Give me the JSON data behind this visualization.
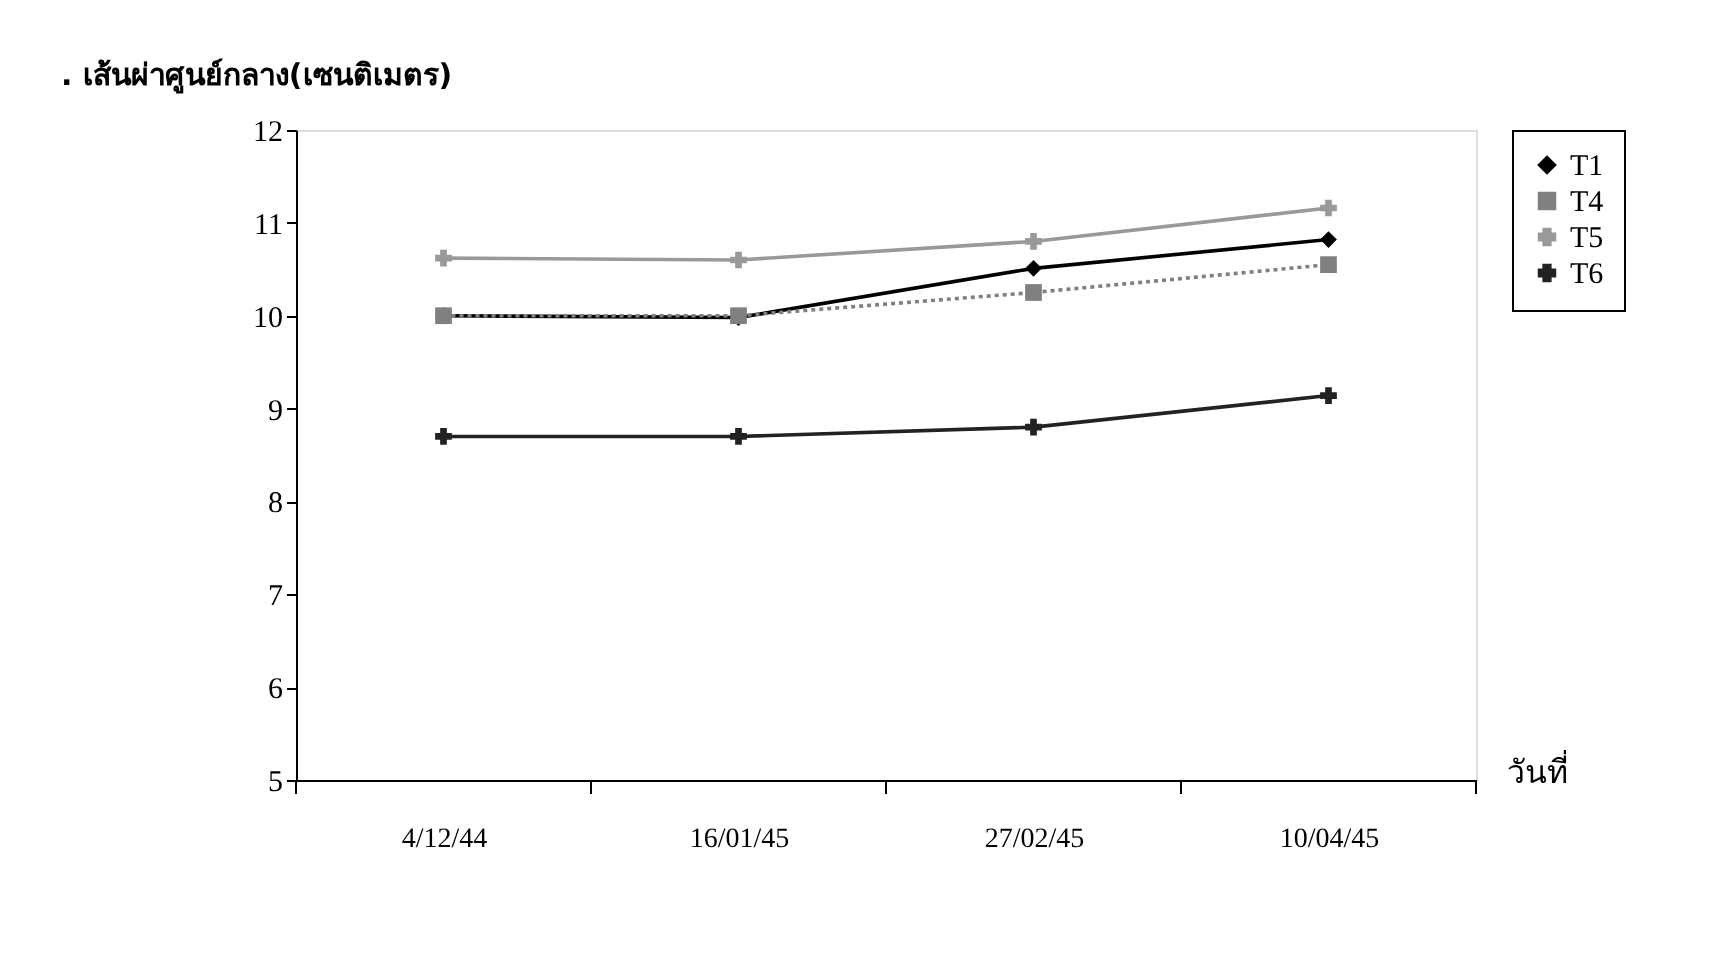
{
  "chart_data": {
    "type": "line",
    "ylabel": ". เส้นผ่าศูนย์กลาง(เซนติเมตร)",
    "xlabel": "วันที่",
    "categories": [
      "4/12/44",
      "16/01/45",
      "27/02/45",
      "10/04/45"
    ],
    "series": [
      {
        "name": "T1",
        "color": "#000000",
        "marker": "diamond",
        "line_style": "solid",
        "values": [
          10.0,
          9.98,
          10.51,
          10.82
        ]
      },
      {
        "name": "T4",
        "color": "#808080",
        "marker": "square",
        "line_style": "dotted",
        "values": [
          10.0,
          10.0,
          10.25,
          10.55
        ]
      },
      {
        "name": "T5",
        "color": "#999999",
        "marker": "cross",
        "line_style": "solid",
        "values": [
          10.62,
          10.6,
          10.8,
          11.16
        ]
      },
      {
        "name": "T6",
        "color": "#222222",
        "marker": "cross",
        "line_style": "solid",
        "values": [
          8.7,
          8.7,
          8.8,
          9.14
        ]
      }
    ],
    "ylim": [
      5,
      12
    ],
    "yticks": [
      5,
      6,
      7,
      8,
      9,
      10,
      11,
      12
    ],
    "grid": false,
    "legend": "right"
  }
}
